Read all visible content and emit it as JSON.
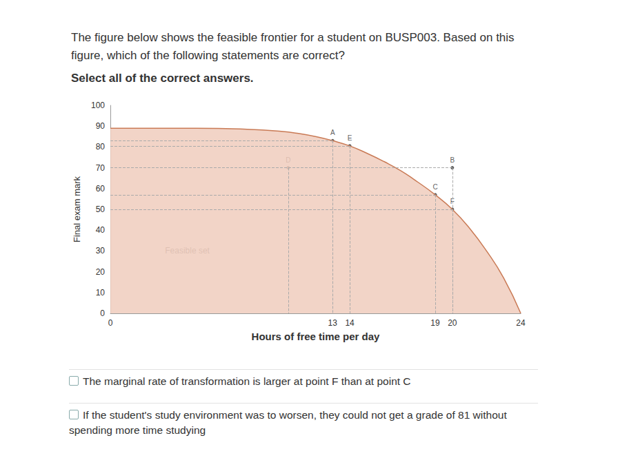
{
  "question": "The figure below shows the feasible frontier for a student on BUSP003. Based on this figure, which of the following statements are correct?",
  "instruction": "Select all of the correct answers.",
  "chart_data": {
    "type": "area",
    "x_label": "Hours of free time per day",
    "y_label": "Final exam mark",
    "x": [
      0,
      5,
      8,
      10,
      11,
      12,
      13,
      14,
      15,
      16,
      17,
      18,
      19,
      20,
      21,
      22,
      23,
      24
    ],
    "values": [
      89,
      89,
      88.5,
      87.5,
      86.5,
      85,
      83,
      80.5,
      77,
      73,
      68.5,
      63,
      57,
      50,
      41,
      30,
      17,
      0
    ],
    "color": "#c97a55",
    "points": [
      {
        "label": "A",
        "x": 13,
        "y": 83
      },
      {
        "label": "E",
        "x": 14,
        "y": 80.5
      },
      {
        "label": "D",
        "x": 10.4,
        "y": 70
      },
      {
        "label": "B",
        "x": 20,
        "y": 70
      },
      {
        "label": "C",
        "x": 19,
        "y": 57
      },
      {
        "label": "F",
        "x": 20,
        "y": 50
      }
    ],
    "annotations": [
      {
        "text": "Feasible set",
        "x": 4.5,
        "y": 30
      }
    ],
    "xlim": [
      0,
      24
    ],
    "xticks": [
      0,
      13,
      14,
      19,
      20,
      24
    ],
    "ylim": [
      0,
      100
    ],
    "yticks": [
      0,
      10,
      20,
      30,
      40,
      50,
      60,
      70,
      80,
      90,
      100
    ],
    "grid": false
  },
  "answers": [
    "The marginal rate of transformation is larger at point F than at point C",
    "If the student's study environment was to worsen, they could not get a grade of 81 without spending more time studying"
  ]
}
